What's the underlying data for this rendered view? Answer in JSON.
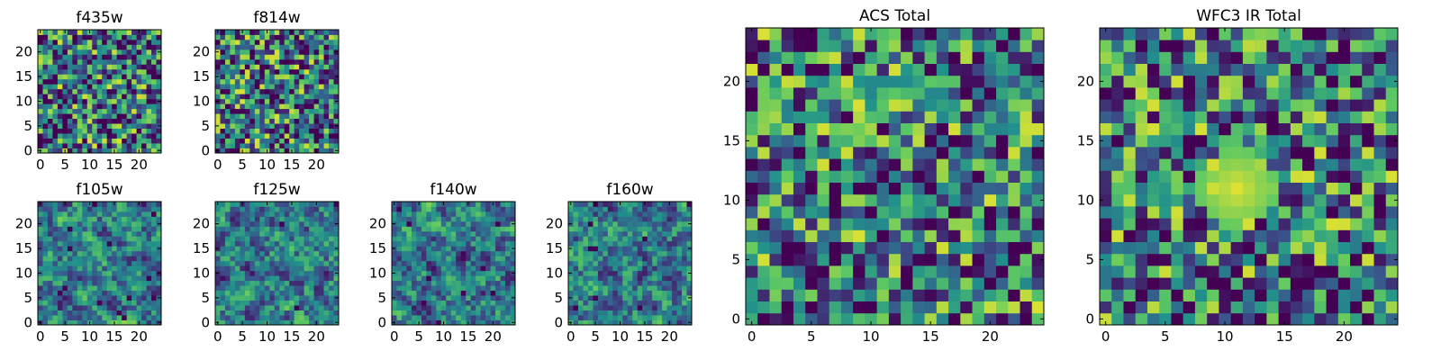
{
  "chart_data": [
    {
      "type": "heatmap",
      "title": "f435w",
      "size": 25,
      "xticks": [
        0,
        5,
        10,
        15,
        20
      ],
      "yticks": [
        0,
        5,
        10,
        15,
        20
      ],
      "seed": 435,
      "smooth": 0,
      "darkspots": 14
    },
    {
      "type": "heatmap",
      "title": "f814w",
      "size": 25,
      "xticks": [
        0,
        5,
        10,
        15,
        20
      ],
      "yticks": [
        0,
        5,
        10,
        15,
        20
      ],
      "seed": 814,
      "smooth": 0,
      "darkspots": 12
    },
    {
      "type": "heatmap",
      "title": "f105w",
      "size": 25,
      "xticks": [
        0,
        5,
        10,
        15,
        20
      ],
      "yticks": [
        0,
        5,
        10,
        15,
        20
      ],
      "seed": 105,
      "smooth": 1,
      "darkspots": 18
    },
    {
      "type": "heatmap",
      "title": "f125w",
      "size": 25,
      "xticks": [
        0,
        5,
        10,
        15,
        20
      ],
      "yticks": [
        0,
        5,
        10,
        15,
        20
      ],
      "seed": 125,
      "smooth": 1,
      "darkspots": 14
    },
    {
      "type": "heatmap",
      "title": "f140w",
      "size": 25,
      "xticks": [
        0,
        5,
        10,
        15,
        20
      ],
      "yticks": [
        0,
        5,
        10,
        15,
        20
      ],
      "seed": 140,
      "smooth": 1,
      "darkspots": 16
    },
    {
      "type": "heatmap",
      "title": "f160w",
      "size": 25,
      "xticks": [
        0,
        5,
        10,
        15,
        20
      ],
      "yticks": [
        0,
        5,
        10,
        15,
        20
      ],
      "seed": 160,
      "smooth": 1,
      "darkspots": 14
    },
    {
      "type": "heatmap",
      "title": "ACS Total",
      "size": 25,
      "xticks": [
        0,
        5,
        10,
        15,
        20
      ],
      "yticks": [
        0,
        5,
        10,
        15,
        20
      ],
      "seed": 777,
      "smooth": 0,
      "darkspots": 16
    },
    {
      "type": "heatmap",
      "title": "WFC3 IR Total",
      "size": 25,
      "xticks": [
        0,
        5,
        10,
        15,
        20
      ],
      "yticks": [
        0,
        5,
        10,
        15,
        20
      ],
      "seed": 999,
      "smooth": 0,
      "darkspots": 16,
      "blob": [
        11,
        11
      ]
    }
  ],
  "colormap": [
    "#440154",
    "#3b528b",
    "#21918c",
    "#5ec962",
    "#fde725"
  ]
}
